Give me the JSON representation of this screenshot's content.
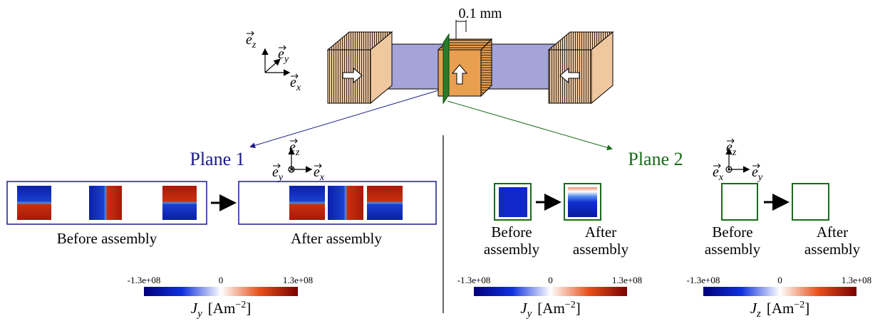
{
  "scale_label": "0.1 mm",
  "device_axes": {
    "z": {
      "symbol": "e",
      "subscript": "z"
    },
    "y": {
      "symbol": "e",
      "subscript": "y"
    },
    "x": {
      "symbol": "e",
      "subscript": "x"
    }
  },
  "plane_1": {
    "title": "Plane 1",
    "axes": {
      "z": {
        "symbol": "e",
        "subscript": "z"
      },
      "y": {
        "symbol": "e",
        "subscript": "y"
      },
      "x": {
        "symbol": "e",
        "subscript": "x"
      }
    },
    "before_caption": "Before assembly",
    "after_caption": "After assembly",
    "colorbar": {
      "min_label": "-1.3e+08",
      "mid_label": "0",
      "max_label": "1.3e+08",
      "label": {
        "symbol": "J",
        "subscript": "y",
        "unit": "[Am",
        "exponent": "−2",
        "bracket": "]"
      }
    }
  },
  "plane_2": {
    "title": "Plane 2",
    "axes": {
      "z": {
        "symbol": "e",
        "subscript": "z"
      },
      "x": {
        "symbol": "e",
        "subscript": "x"
      },
      "y": {
        "symbol": "e",
        "subscript": "y"
      }
    },
    "jy_panel": {
      "before_caption": [
        "Before",
        "assembly"
      ],
      "after_caption": [
        "After",
        "assembly"
      ],
      "colorbar": {
        "min_label": "-1.3e+08",
        "mid_label": "0",
        "max_label": "1.3e+08",
        "label": {
          "symbol": "J",
          "subscript": "y",
          "unit": "[Am",
          "exponent": "−2",
          "bracket": "]"
        }
      }
    },
    "jz_panel": {
      "before_caption": [
        "Before",
        "assembly"
      ],
      "after_caption": [
        "After",
        "assembly"
      ],
      "colorbar": {
        "min_label": "-1.3e+08",
        "mid_label": "0",
        "max_label": "1.3e+08",
        "label": {
          "symbol": "J",
          "subscript": "z",
          "unit": "[Am",
          "exponent": "−2",
          "bracket": "]"
        }
      }
    }
  }
}
